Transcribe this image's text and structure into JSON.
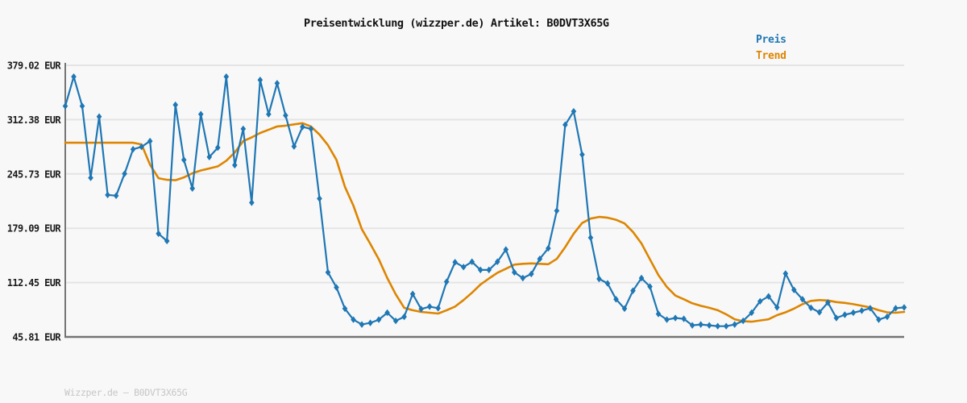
{
  "title": "Preisentwicklung (wizzper.de) Artikel: B0DVT3X65G",
  "legend": {
    "price_label": "Preis",
    "trend_label": "Trend"
  },
  "footer": "Wizzper.de — B0DVT3X65G",
  "colors": {
    "background": "#f8f8f8",
    "price": "#1f77b4",
    "trend": "#dd8500",
    "grid": "#e4e4e4",
    "axis": "#757575",
    "tick_text": "#1a1a1a",
    "title_text": "#111111",
    "footer_text": "#c6c6c6"
  },
  "chart_data": {
    "type": "line",
    "title": "Preisentwicklung (wizzper.de) Artikel: B0DVT3X65G",
    "ylabel": "EUR",
    "ylim": [
      45.81,
      379.02
    ],
    "yticks": [
      {
        "value": 379.02,
        "label": "379.02 EUR"
      },
      {
        "value": 312.38,
        "label": "312.38 EUR"
      },
      {
        "value": 245.73,
        "label": "245.73 EUR"
      },
      {
        "value": 179.09,
        "label": "179.09 EUR"
      },
      {
        "value": 112.45,
        "label": "112.45 EUR"
      },
      {
        "value": 45.81,
        "label": "45.81 EUR"
      }
    ],
    "x_axis": {
      "labels_visible": false,
      "points": 100
    },
    "grid": true,
    "legend_position": "top-right",
    "series": [
      {
        "name": "Preis",
        "marker": "diamond",
        "values": [
          329,
          365,
          329,
          241,
          316,
          220,
          219,
          246,
          276,
          279,
          286,
          172.5,
          163.5,
          330.5,
          263,
          228,
          319,
          266.5,
          278,
          365,
          256.5,
          301,
          210.5,
          361,
          319,
          357,
          317.5,
          279.5,
          303.5,
          301,
          215.5,
          125,
          106.5,
          80.5,
          67,
          61,
          63,
          67,
          75.5,
          65.5,
          70.5,
          98.5,
          80,
          83,
          81,
          113.5,
          137.5,
          131.5,
          138,
          128,
          128,
          138,
          153,
          125,
          118,
          123,
          141.5,
          154.5,
          200.5,
          306,
          322.5,
          269.5,
          167.5,
          117,
          111.5,
          92,
          80.5,
          102.5,
          118,
          107.5,
          74,
          67,
          69,
          68,
          60,
          61,
          60,
          59,
          59,
          61,
          65.5,
          75.5,
          89.5,
          95.5,
          82,
          123.5,
          103.5,
          92,
          81.5,
          76,
          88,
          69,
          73,
          75.5,
          78,
          81,
          67,
          70.5,
          81,
          82
        ]
      },
      {
        "name": "Trend",
        "marker": "none",
        "values": [
          284,
          284,
          284,
          284,
          284,
          284,
          284,
          284,
          284,
          282,
          257,
          240.5,
          238.5,
          238,
          241.5,
          246.5,
          250,
          252.5,
          255,
          262,
          272,
          286,
          290.5,
          296,
          300,
          304,
          305,
          306.5,
          308,
          304,
          294,
          281,
          263,
          230,
          207,
          178,
          160,
          141,
          118,
          98,
          81.5,
          78.5,
          76.5,
          75.5,
          74.5,
          78.5,
          83,
          91,
          100,
          110,
          117.5,
          124.5,
          129.5,
          134.5,
          135.5,
          136,
          135.5,
          135,
          141.5,
          156,
          172.5,
          185.5,
          191,
          193,
          192,
          189.5,
          185,
          174.5,
          160.5,
          141,
          121.5,
          107,
          96.5,
          92,
          87,
          84,
          81.5,
          78.5,
          73.5,
          67.5,
          65,
          64.5,
          66,
          67.5,
          72.5,
          76,
          80.5,
          86,
          90,
          91,
          90.5,
          88.5,
          87.5,
          86,
          84,
          82,
          78.5,
          76,
          75.5,
          76.5
        ]
      }
    ]
  }
}
